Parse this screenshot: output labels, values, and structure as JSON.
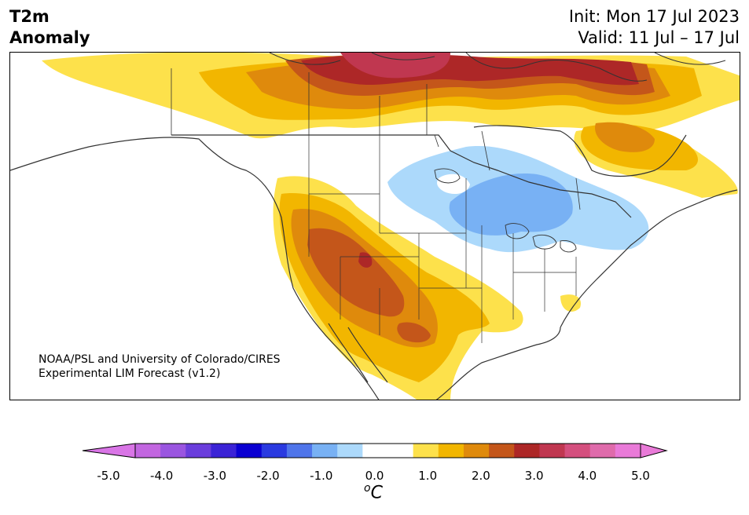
{
  "title": {
    "left_line1": "T2m",
    "left_line2": "Anomaly",
    "right_line1": "Init: Mon 17 Jul 2023",
    "right_line2": "Valid: 11 Jul – 17 Jul"
  },
  "credit": {
    "line1": "NOAA/PSL and University of Colorado/CIRES",
    "line2": "Experimental LIM Forecast (v1.2)"
  },
  "colorbar": {
    "tick_labels": [
      "-5.0",
      "-4.0",
      "-3.0",
      "-2.0",
      "-1.0",
      "0.0",
      "1.0",
      "2.0",
      "3.0",
      "4.0",
      "5.0"
    ],
    "unit_sup": "o",
    "unit": "C",
    "under_color": "#d975e6",
    "over_color": "#e97ad8",
    "colors": [
      "#c266e0",
      "#9a55e0",
      "#6a3ddc",
      "#3b23d6",
      "#0b00d2",
      "#2a3ae0",
      "#4f75ea",
      "#78b1f4",
      "#acd9fb",
      "#ffffff",
      "#ffffff",
      "#fde14b",
      "#f2b600",
      "#df8a0c",
      "#c4561a",
      "#ad2727",
      "#c03750",
      "#d44f7e",
      "#df6bab",
      "#e97ad8"
    ]
  },
  "palette": {
    "ocean": "#ffffff",
    "land_outline": "#333333",
    "anom_1": "#fde14b",
    "anom_2": "#f2b600",
    "anom_3": "#df8a0c",
    "anom_4": "#c4561a",
    "anom_5": "#ad2727",
    "anom_6": "#c03750",
    "neg_1": "#acd9fb",
    "neg_2": "#78b1f4"
  }
}
